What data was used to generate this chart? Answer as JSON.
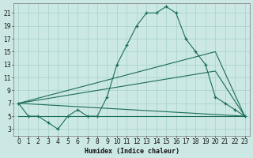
{
  "xlabel": "Humidex (Indice chaleur)",
  "bg_color": "#cce8e4",
  "grid_color": "#aad4d0",
  "line_color": "#1a6b5a",
  "xlim": [
    -0.5,
    23.5
  ],
  "ylim": [
    2.0,
    22.5
  ],
  "yticks": [
    3,
    5,
    7,
    9,
    11,
    13,
    15,
    17,
    19,
    21
  ],
  "xticks": [
    0,
    1,
    2,
    3,
    4,
    5,
    6,
    7,
    8,
    9,
    10,
    11,
    12,
    13,
    14,
    15,
    16,
    17,
    18,
    19,
    20,
    21,
    22,
    23
  ],
  "series1_x": [
    0,
    1,
    2,
    3,
    4,
    5,
    6,
    7,
    8,
    9,
    10,
    11,
    12,
    13,
    14,
    15,
    16,
    17,
    18,
    19,
    20,
    21,
    22,
    23
  ],
  "series1_y": [
    7,
    5,
    5,
    4,
    3,
    5,
    6,
    5,
    5,
    8,
    13,
    16,
    19,
    21,
    21,
    22,
    21,
    17,
    15,
    13,
    8,
    7,
    6,
    5
  ],
  "series2_x": [
    0,
    1,
    2,
    3,
    4,
    5,
    6,
    7,
    8,
    9,
    10,
    11,
    12,
    13,
    14,
    15,
    16,
    17,
    18,
    19,
    20,
    21,
    22,
    23
  ],
  "series2_y": [
    5,
    5,
    5,
    5,
    5,
    5,
    5,
    5,
    5,
    5,
    5,
    5,
    5,
    5,
    5,
    5,
    5,
    5,
    5,
    5,
    5,
    5,
    5,
    5
  ],
  "series3_x": [
    0,
    23
  ],
  "series3_y": [
    7,
    5
  ],
  "series4_x": [
    0,
    20,
    23
  ],
  "series4_y": [
    7,
    12,
    5
  ],
  "series5_x": [
    0,
    20,
    23
  ],
  "series5_y": [
    7,
    15,
    5
  ]
}
